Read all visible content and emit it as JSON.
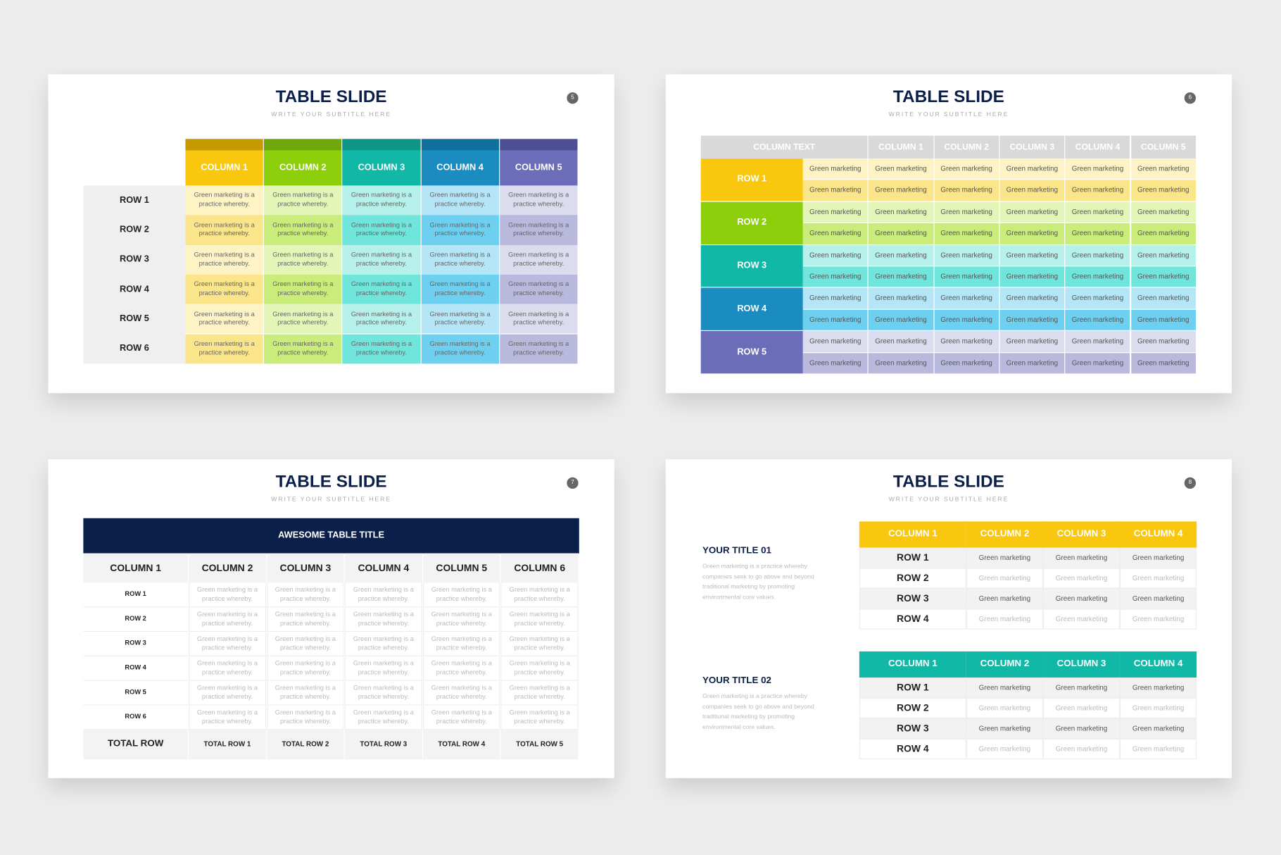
{
  "slides": [
    {
      "number": "5",
      "title": "TABLE SLIDE",
      "subtitle": "WRITE YOUR SUBTITLE HERE",
      "table": {
        "columns": [
          "COLUMN 1",
          "COLUMN 2",
          "COLUMN 3",
          "COLUMN 4",
          "COLUMN 5"
        ],
        "rows": [
          {
            "label": "ROW 1",
            "cells": [
              "Green marketing is a practice whereby.",
              "Green marketing is a practice whereby.",
              "Green marketing is a practice whereby.",
              "Green marketing is a practice whereby.",
              "Green marketing is a practice whereby."
            ]
          },
          {
            "label": "ROW 2",
            "cells": [
              "Green marketing is a practice whereby.",
              "Green marketing is a practice whereby.",
              "Green marketing is a practice whereby.",
              "Green marketing is a practice whereby.",
              "Green marketing is a practice whereby."
            ]
          },
          {
            "label": "ROW 3",
            "cells": [
              "Green marketing is a practice whereby.",
              "Green marketing is a practice whereby.",
              "Green marketing is a practice whereby.",
              "Green marketing is a practice whereby.",
              "Green marketing is a practice whereby."
            ]
          },
          {
            "label": "ROW 4",
            "cells": [
              "Green marketing is a practice whereby.",
              "Green marketing is a practice whereby.",
              "Green marketing is a practice whereby.",
              "Green marketing is a practice whereby.",
              "Green marketing is a practice whereby."
            ]
          },
          {
            "label": "ROW 5",
            "cells": [
              "Green marketing is a practice whereby.",
              "Green marketing is a practice whereby.",
              "Green marketing is a practice whereby.",
              "Green marketing is a practice whereby.",
              "Green marketing is a practice whereby."
            ]
          },
          {
            "label": "ROW 6",
            "cells": [
              "Green marketing is a practice whereby.",
              "Green marketing is a practice whereby.",
              "Green marketing is a practice whereby.",
              "Green marketing is a practice whereby.",
              "Green marketing is a practice whereby."
            ]
          }
        ]
      }
    },
    {
      "number": "6",
      "title": "TABLE SLIDE",
      "subtitle": "WRITE YOUR SUBTITLE HERE",
      "table": {
        "columns": [
          "COLUMN TEXT",
          "COLUMN 1",
          "COLUMN 2",
          "COLUMN 3",
          "COLUMN 4",
          "COLUMN 5"
        ],
        "rows": [
          {
            "label": "ROW 1",
            "sub_rows": [
              [
                "Green marketing",
                "Green marketing",
                "Green marketing",
                "Green marketing",
                "Green marketing",
                "Green marketing"
              ],
              [
                "Green marketing",
                "Green marketing",
                "Green marketing",
                "Green marketing",
                "Green marketing",
                "Green marketing"
              ]
            ]
          },
          {
            "label": "ROW 2",
            "sub_rows": [
              [
                "Green marketing",
                "Green marketing",
                "Green marketing",
                "Green marketing",
                "Green marketing",
                "Green marketing"
              ],
              [
                "Green marketing",
                "Green marketing",
                "Green marketing",
                "Green marketing",
                "Green marketing",
                "Green marketing"
              ]
            ]
          },
          {
            "label": "ROW 3",
            "sub_rows": [
              [
                "Green marketing",
                "Green marketing",
                "Green marketing",
                "Green marketing",
                "Green marketing",
                "Green marketing"
              ],
              [
                "Green marketing",
                "Green marketing",
                "Green marketing",
                "Green marketing",
                "Green marketing",
                "Green marketing"
              ]
            ]
          },
          {
            "label": "ROW 4",
            "sub_rows": [
              [
                "Green marketing",
                "Green marketing",
                "Green marketing",
                "Green marketing",
                "Green marketing",
                "Green marketing"
              ],
              [
                "Green marketing",
                "Green marketing",
                "Green marketing",
                "Green marketing",
                "Green marketing",
                "Green marketing"
              ]
            ]
          },
          {
            "label": "ROW 5",
            "sub_rows": [
              [
                "Green marketing",
                "Green marketing",
                "Green marketing",
                "Green marketing",
                "Green marketing",
                "Green marketing"
              ],
              [
                "Green marketing",
                "Green marketing",
                "Green marketing",
                "Green marketing",
                "Green marketing",
                "Green marketing"
              ]
            ]
          }
        ]
      }
    },
    {
      "number": "7",
      "title": "TABLE SLIDE",
      "subtitle": "WRITE YOUR SUBTITLE HERE",
      "table": {
        "title": "AWESOME TABLE TITLE",
        "columns": [
          "COLUMN 1",
          "COLUMN 2",
          "COLUMN 3",
          "COLUMN 4",
          "COLUMN 5",
          "COLUMN 6"
        ],
        "rows": [
          {
            "label": "ROW 1",
            "cells": [
              "Green marketing is a practice whereby.",
              "Green marketing is a practice whereby.",
              "Green marketing is a practice whereby.",
              "Green marketing is a practice whereby.",
              "Green marketing is a practice whereby."
            ]
          },
          {
            "label": "ROW 2",
            "cells": [
              "Green marketing is a practice whereby.",
              "Green marketing is a practice whereby.",
              "Green marketing is a practice whereby.",
              "Green marketing is a practice whereby.",
              "Green marketing is a practice whereby."
            ]
          },
          {
            "label": "ROW 3",
            "cells": [
              "Green marketing is a practice whereby.",
              "Green marketing is a practice whereby.",
              "Green marketing is a practice whereby.",
              "Green marketing is a practice whereby.",
              "Green marketing is a practice whereby."
            ]
          },
          {
            "label": "ROW 4",
            "cells": [
              "Green marketing is a practice whereby.",
              "Green marketing is a practice whereby.",
              "Green marketing is a practice whereby.",
              "Green marketing is a practice whereby.",
              "Green marketing is a practice whereby."
            ]
          },
          {
            "label": "ROW 5",
            "cells": [
              "Green marketing is a practice whereby.",
              "Green marketing is a practice whereby.",
              "Green marketing is a practice whereby.",
              "Green marketing is a practice whereby.",
              "Green marketing is a practice whereby."
            ]
          },
          {
            "label": "ROW 6",
            "cells": [
              "Green marketing is a practice whereby.",
              "Green marketing is a practice whereby.",
              "Green marketing is a practice whereby.",
              "Green marketing is a practice whereby.",
              "Green marketing is a practice whereby."
            ]
          }
        ],
        "total": {
          "label": "TOTAL ROW",
          "cells": [
            "TOTAL ROW 1",
            "TOTAL ROW 2",
            "TOTAL ROW 3",
            "TOTAL ROW 4",
            "TOTAL ROW 5"
          ]
        }
      }
    },
    {
      "number": "8",
      "title": "TABLE SLIDE",
      "subtitle": "WRITE YOUR SUBTITLE HERE",
      "sections": [
        {
          "title": "YOUR TITLE 01",
          "text": "Green marketing is a practice whereby companies seek to go above and beyond traditional marketing by promoting environmental core values.",
          "table": {
            "columns": [
              "COLUMN 1",
              "COLUMN 2",
              "COLUMN 3",
              "COLUMN 4"
            ],
            "rows": [
              {
                "label": "ROW 1",
                "cells": [
                  "Green marketing",
                  "Green marketing",
                  "Green marketing"
                ]
              },
              {
                "label": "ROW 2",
                "cells": [
                  "Green marketing",
                  "Green marketing",
                  "Green marketing"
                ]
              },
              {
                "label": "ROW 3",
                "cells": [
                  "Green marketing",
                  "Green marketing",
                  "Green marketing"
                ]
              },
              {
                "label": "ROW 4",
                "cells": [
                  "Green marketing",
                  "Green marketing",
                  "Green marketing"
                ]
              }
            ]
          }
        },
        {
          "title": "YOUR TITLE 02",
          "text": "Green marketing is a practice whereby companies seek to go above and beyond traditional marketing by promoting environmental core values.",
          "table": {
            "columns": [
              "COLUMN 1",
              "COLUMN 2",
              "COLUMN 3",
              "COLUMN 4"
            ],
            "rows": [
              {
                "label": "ROW 1",
                "cells": [
                  "Green marketing",
                  "Green marketing",
                  "Green marketing"
                ]
              },
              {
                "label": "ROW 2",
                "cells": [
                  "Green marketing",
                  "Green marketing",
                  "Green marketing"
                ]
              },
              {
                "label": "ROW 3",
                "cells": [
                  "Green marketing",
                  "Green marketing",
                  "Green marketing"
                ]
              },
              {
                "label": "ROW 4",
                "cells": [
                  "Green marketing",
                  "Green marketing",
                  "Green marketing"
                ]
              }
            ]
          }
        }
      ]
    }
  ]
}
